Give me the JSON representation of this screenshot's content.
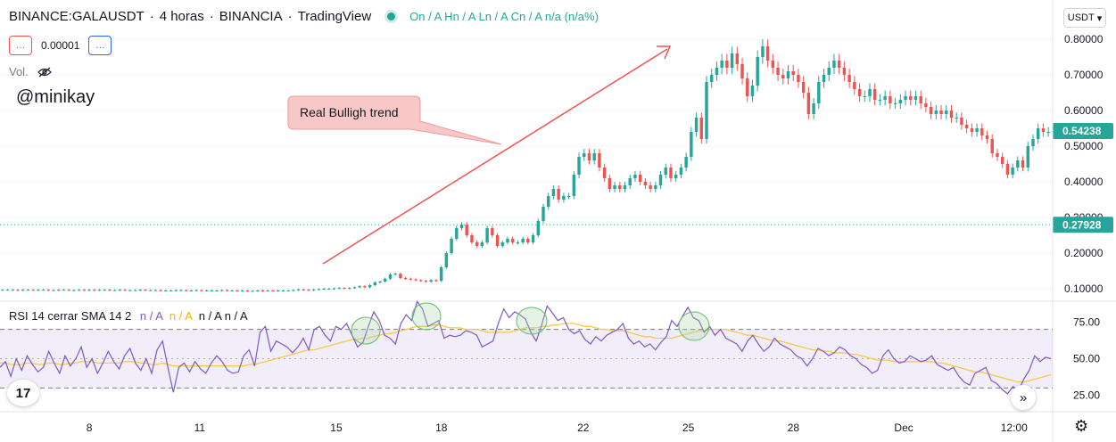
{
  "header": {
    "symbol": "BINANCE:GALAUSDT",
    "interval": "4 horas",
    "exchange": "BINANCIA",
    "brand": "TradingView",
    "ohlc": "On / A  Hn / A  Ln / A  Cn / A  n/a (n/a%)"
  },
  "buttons": {
    "sell": "…",
    "buy": "…",
    "spread": "0.00001"
  },
  "volume_label": "Vol.",
  "watermark": "@minikay",
  "currency": "USDT",
  "rsi_header": {
    "name": "RSI 14 cerrar SMA 14 2",
    "val1": "n / A",
    "val2": "n / A",
    "val3": "n / A n / A"
  },
  "colors": {
    "up": "#26a69a",
    "down": "#ef5350",
    "rsi": "#7e57c2",
    "sma": "#f7c948",
    "arrow": "#ef5350",
    "callout": "#f8c7c7"
  },
  "chart_data": [
    {
      "type": "candlestick",
      "title": "BINANCE:GALAUSDT · 4 horas · BINANCIA",
      "x_ticks": [
        "8",
        "11",
        "15",
        "18",
        "22",
        "25",
        "28",
        "Dec",
        "12:00"
      ],
      "y_ticks": [
        "0.10000",
        "0.20000",
        "0.30000",
        "0.40000",
        "0.50000",
        "0.60000",
        "0.70000",
        "0.80000"
      ],
      "ylim": [
        0.07,
        0.88
      ],
      "last_price": "0.54238",
      "marked_level": "0.27928",
      "annotation": "Real Bulligh trend",
      "close": [
        0.097,
        0.097,
        0.097,
        0.096,
        0.097,
        0.097,
        0.096,
        0.097,
        0.097,
        0.096,
        0.096,
        0.097,
        0.097,
        0.096,
        0.096,
        0.097,
        0.096,
        0.097,
        0.096,
        0.097,
        0.097,
        0.096,
        0.096,
        0.097,
        0.096,
        0.096,
        0.096,
        0.097,
        0.096,
        0.096,
        0.096,
        0.095,
        0.095,
        0.095,
        0.096,
        0.096,
        0.095,
        0.095,
        0.096,
        0.095,
        0.095,
        0.095,
        0.095,
        0.096,
        0.095,
        0.095,
        0.094,
        0.095,
        0.094,
        0.094,
        0.095,
        0.094,
        0.095,
        0.094,
        0.095,
        0.095,
        0.095,
        0.096,
        0.098,
        0.097,
        0.096,
        0.098,
        0.099,
        0.1,
        0.1,
        0.101,
        0.102,
        0.101,
        0.102,
        0.104,
        0.107,
        0.104,
        0.11,
        0.118,
        0.12,
        0.128,
        0.14,
        0.142,
        0.13,
        0.128,
        0.126,
        0.124,
        0.122,
        0.12,
        0.124,
        0.122,
        0.16,
        0.2,
        0.24,
        0.27,
        0.28,
        0.25,
        0.23,
        0.22,
        0.23,
        0.27,
        0.25,
        0.22,
        0.23,
        0.24,
        0.23,
        0.23,
        0.24,
        0.23,
        0.25,
        0.29,
        0.33,
        0.36,
        0.38,
        0.35,
        0.36,
        0.36,
        0.42,
        0.47,
        0.48,
        0.46,
        0.48,
        0.44,
        0.41,
        0.38,
        0.39,
        0.38,
        0.39,
        0.41,
        0.42,
        0.4,
        0.39,
        0.38,
        0.39,
        0.42,
        0.44,
        0.41,
        0.42,
        0.44,
        0.47,
        0.54,
        0.58,
        0.52,
        0.68,
        0.7,
        0.72,
        0.74,
        0.72,
        0.76,
        0.73,
        0.69,
        0.64,
        0.67,
        0.75,
        0.78,
        0.74,
        0.72,
        0.7,
        0.69,
        0.71,
        0.7,
        0.68,
        0.65,
        0.59,
        0.62,
        0.68,
        0.7,
        0.72,
        0.74,
        0.72,
        0.7,
        0.68,
        0.66,
        0.64,
        0.64,
        0.66,
        0.63,
        0.63,
        0.64,
        0.62,
        0.62,
        0.63,
        0.64,
        0.63,
        0.64,
        0.62,
        0.61,
        0.59,
        0.6,
        0.59,
        0.6,
        0.58,
        0.58,
        0.56,
        0.55,
        0.54,
        0.55,
        0.53,
        0.52,
        0.48,
        0.47,
        0.45,
        0.42,
        0.44,
        0.46,
        0.44,
        0.5,
        0.52,
        0.55,
        0.54,
        0.54
      ],
      "open": [
        0.097,
        0.097,
        0.097,
        0.097,
        0.096,
        0.097,
        0.097,
        0.096,
        0.097,
        0.097,
        0.096,
        0.096,
        0.097,
        0.097,
        0.096,
        0.096,
        0.097,
        0.096,
        0.097,
        0.096,
        0.097,
        0.097,
        0.096,
        0.096,
        0.097,
        0.096,
        0.096,
        0.096,
        0.097,
        0.096,
        0.096,
        0.096,
        0.095,
        0.095,
        0.095,
        0.096,
        0.096,
        0.095,
        0.095,
        0.096,
        0.095,
        0.095,
        0.095,
        0.095,
        0.096,
        0.095,
        0.095,
        0.094,
        0.095,
        0.094,
        0.094,
        0.095,
        0.094,
        0.095,
        0.094,
        0.095,
        0.095,
        0.095,
        0.096,
        0.098,
        0.097,
        0.096,
        0.098,
        0.099,
        0.1,
        0.1,
        0.101,
        0.102,
        0.101,
        0.102,
        0.104,
        0.107,
        0.104,
        0.11,
        0.118,
        0.12,
        0.128,
        0.14,
        0.142,
        0.13,
        0.128,
        0.126,
        0.124,
        0.122,
        0.12,
        0.124,
        0.122,
        0.16,
        0.2,
        0.24,
        0.27,
        0.28,
        0.25,
        0.23,
        0.22,
        0.23,
        0.27,
        0.25,
        0.22,
        0.23,
        0.24,
        0.23,
        0.23,
        0.24,
        0.23,
        0.25,
        0.29,
        0.33,
        0.36,
        0.38,
        0.35,
        0.36,
        0.36,
        0.42,
        0.47,
        0.48,
        0.46,
        0.48,
        0.44,
        0.41,
        0.38,
        0.39,
        0.38,
        0.39,
        0.41,
        0.42,
        0.4,
        0.39,
        0.38,
        0.39,
        0.42,
        0.44,
        0.41,
        0.42,
        0.44,
        0.47,
        0.54,
        0.58,
        0.52,
        0.68,
        0.7,
        0.72,
        0.74,
        0.72,
        0.76,
        0.73,
        0.69,
        0.64,
        0.67,
        0.75,
        0.78,
        0.74,
        0.72,
        0.7,
        0.69,
        0.71,
        0.7,
        0.68,
        0.65,
        0.59,
        0.62,
        0.68,
        0.7,
        0.72,
        0.74,
        0.72,
        0.7,
        0.68,
        0.66,
        0.64,
        0.64,
        0.66,
        0.63,
        0.63,
        0.64,
        0.62,
        0.62,
        0.63,
        0.64,
        0.63,
        0.64,
        0.62,
        0.61,
        0.59,
        0.6,
        0.59,
        0.6,
        0.58,
        0.58,
        0.56,
        0.55,
        0.54,
        0.55,
        0.53,
        0.52,
        0.48,
        0.47,
        0.45,
        0.42,
        0.44,
        0.46,
        0.44,
        0.5,
        0.52,
        0.55,
        0.54
      ]
    },
    {
      "type": "line",
      "title": "RSI 14 cerrar SMA 14 2",
      "y_ticks": [
        "25.00",
        "50.00",
        "75.00"
      ],
      "ylim": [
        15,
        88
      ],
      "bands": [
        30,
        70
      ],
      "series": [
        {
          "name": "RSI",
          "values": [
            44,
            48,
            38,
            50,
            42,
            52,
            46,
            41,
            44,
            55,
            47,
            40,
            52,
            45,
            50,
            58,
            44,
            50,
            40,
            47,
            55,
            48,
            43,
            52,
            57,
            47,
            42,
            50,
            40,
            56,
            62,
            44,
            27,
            44,
            47,
            41,
            48,
            43,
            40,
            47,
            52,
            48,
            42,
            40,
            41,
            52,
            56,
            45,
            68,
            72,
            55,
            62,
            60,
            58,
            54,
            58,
            64,
            56,
            70,
            72,
            66,
            62,
            72,
            70,
            74,
            66,
            58,
            61,
            72,
            82,
            76,
            66,
            64,
            60,
            74,
            80,
            76,
            89,
            84,
            72,
            74,
            76,
            64,
            66,
            65,
            66,
            69,
            68,
            66,
            58,
            60,
            62,
            74,
            84,
            78,
            82,
            80,
            77,
            68,
            62,
            73,
            86,
            81,
            76,
            78,
            70,
            67,
            69,
            63,
            60,
            65,
            62,
            66,
            68,
            70,
            74,
            64,
            60,
            62,
            58,
            60,
            56,
            61,
            65,
            76,
            72,
            79,
            85,
            78,
            76,
            68,
            72,
            66,
            70,
            64,
            62,
            60,
            55,
            62,
            66,
            60,
            55,
            58,
            64,
            60,
            58,
            56,
            52,
            50,
            45,
            50,
            57,
            55,
            52,
            54,
            58,
            56,
            52,
            50,
            46,
            44,
            40,
            42,
            52,
            56,
            50,
            47,
            48,
            52,
            50,
            48,
            49,
            52,
            46,
            44,
            42,
            44,
            38,
            34,
            32,
            40,
            42,
            44,
            35,
            33,
            29,
            26,
            31,
            28,
            36,
            42,
            52,
            48,
            51,
            50
          ]
        },
        {
          "name": "SMA",
          "values": [
            47,
            47,
            46,
            46,
            46,
            47,
            47,
            46,
            46,
            47,
            47,
            46,
            46,
            47,
            47,
            48,
            48,
            48,
            47,
            47,
            47,
            47,
            47,
            48,
            48,
            48,
            47,
            47,
            46,
            46,
            47,
            46,
            45,
            45,
            45,
            45,
            45,
            45,
            45,
            45,
            45,
            45,
            45,
            45,
            45,
            45,
            46,
            46,
            47,
            48,
            49,
            50,
            51,
            52,
            53,
            54,
            55,
            56,
            56,
            57,
            58,
            59,
            60,
            61,
            62,
            63,
            63,
            64,
            64,
            65,
            66,
            67,
            67,
            68,
            69,
            70,
            71,
            72,
            72,
            72,
            73,
            73,
            72,
            71,
            71,
            71,
            70,
            70,
            70,
            69,
            68,
            68,
            68,
            68,
            68,
            69,
            70,
            71,
            71,
            71,
            72,
            72,
            73,
            73,
            74,
            74,
            74,
            73,
            72,
            72,
            71,
            70,
            70,
            69,
            69,
            69,
            68,
            67,
            66,
            65,
            65,
            64,
            64,
            64,
            64,
            65,
            66,
            67,
            68,
            69,
            69,
            70,
            70,
            70,
            70,
            69,
            68,
            67,
            66,
            66,
            65,
            64,
            63,
            62,
            62,
            61,
            60,
            59,
            58,
            57,
            56,
            56,
            55,
            55,
            54,
            54,
            54,
            53,
            53,
            52,
            51,
            50,
            49,
            49,
            49,
            48,
            48,
            48,
            48,
            48,
            48,
            48,
            48,
            47,
            47,
            46,
            45,
            44,
            43,
            42,
            41,
            41,
            40,
            39,
            38,
            37,
            36,
            35,
            34,
            34,
            35,
            36,
            37,
            38,
            39
          ]
        }
      ]
    }
  ]
}
